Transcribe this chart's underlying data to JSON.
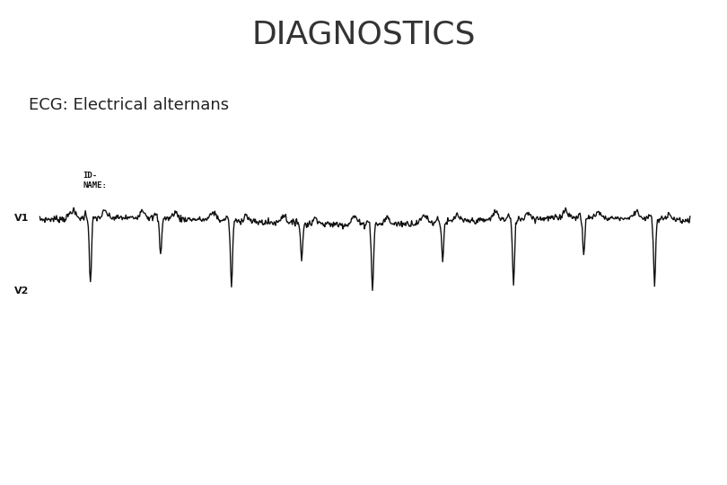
{
  "title": "DIAGNOSTICS",
  "subtitle": "ECG: Electrical alternans",
  "title_fontsize": 26,
  "subtitle_fontsize": 13,
  "title_color": "#333333",
  "subtitle_color": "#222222",
  "background_color": "#ffffff",
  "footer_color_top": "#E8A020",
  "footer_color_bottom": "#C05818",
  "label_v1": "V1",
  "label_v2": "V2",
  "label_id": "ID-",
  "label_name": "NAME:",
  "ecg_color": "#111111",
  "ecg_linewidth": 1.0
}
